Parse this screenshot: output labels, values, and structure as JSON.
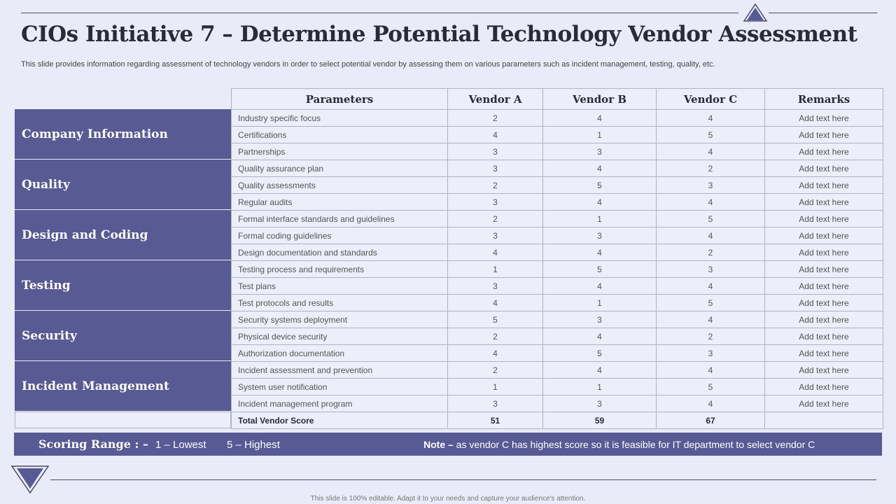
{
  "header": {
    "title": "CIOs Initiative 7 – Determine Potential Technology Vendor Assessment",
    "subtitle": "This slide provides information regarding assessment of technology vendors in order to select potential vendor by assessing them on various parameters such as incident management, testing, quality, etc."
  },
  "table": {
    "columns": [
      "Parameters",
      "Vendor A",
      "Vendor B",
      "Vendor C",
      "Remarks"
    ],
    "categories": [
      "Company Information",
      "Quality",
      "Design and Coding",
      "Testing",
      "Security",
      "Incident Management"
    ],
    "rows": [
      {
        "param": "Industry specific focus",
        "a": "2",
        "b": "4",
        "c": "4",
        "remarks": "Add text here"
      },
      {
        "param": "Certifications",
        "a": "4",
        "b": "1",
        "c": "5",
        "remarks": "Add text here"
      },
      {
        "param": "Partnerships",
        "a": "3",
        "b": "3",
        "c": "4",
        "remarks": "Add text here"
      },
      {
        "param": "Quality assurance plan",
        "a": "3",
        "b": "4",
        "c": "2",
        "remarks": "Add text here"
      },
      {
        "param": "Quality assessments",
        "a": "2",
        "b": "5",
        "c": "3",
        "remarks": "Add text here"
      },
      {
        "param": "Regular audits",
        "a": "3",
        "b": "4",
        "c": "4",
        "remarks": "Add text here"
      },
      {
        "param": "Formal interface standards and guidelines",
        "a": "2",
        "b": "1",
        "c": "5",
        "remarks": "Add text here"
      },
      {
        "param": "Formal coding guidelines",
        "a": "3",
        "b": "3",
        "c": "4",
        "remarks": "Add text here"
      },
      {
        "param": "Design documentation and standards",
        "a": "4",
        "b": "4",
        "c": "2",
        "remarks": "Add text here"
      },
      {
        "param": "Testing process and requirements",
        "a": "1",
        "b": "5",
        "c": "3",
        "remarks": "Add text here"
      },
      {
        "param": "Test plans",
        "a": "3",
        "b": "4",
        "c": "4",
        "remarks": "Add text here"
      },
      {
        "param": "Test protocols and results",
        "a": "4",
        "b": "1",
        "c": "5",
        "remarks": "Add text here"
      },
      {
        "param": "Security systems deployment",
        "a": "5",
        "b": "3",
        "c": "4",
        "remarks": "Add text here"
      },
      {
        "param": "Physical device security",
        "a": "2",
        "b": "4",
        "c": "2",
        "remarks": "Add text here"
      },
      {
        "param": "Authorization documentation",
        "a": "4",
        "b": "5",
        "c": "3",
        "remarks": "Add text here"
      },
      {
        "param": "Incident assessment and prevention",
        "a": "2",
        "b": "4",
        "c": "4",
        "remarks": "Add text here"
      },
      {
        "param": "System user notification",
        "a": "1",
        "b": "1",
        "c": "5",
        "remarks": "Add text here"
      },
      {
        "param": "Incident management program",
        "a": "3",
        "b": "3",
        "c": "4",
        "remarks": "Add text here"
      }
    ],
    "total": {
      "label": "Total Vendor Score",
      "a": "51",
      "b": "59",
      "c": "67",
      "remarks": ""
    }
  },
  "footer": {
    "scoring_label": "Scoring Range : –",
    "scoring_low": "1 – Lowest",
    "scoring_high": "5 – Highest",
    "note_label": "Note –",
    "note_text": " as vendor C has highest score so it is feasible for IT department to select vendor C"
  },
  "editable_note": "This slide is 100% editable. Adapt it to your needs and capture your audience's attention.",
  "colors": {
    "accent": "#575a93",
    "background": "#e9ebf8"
  },
  "icons": [
    "triangle-top-icon",
    "triangle-bottom-icon"
  ]
}
